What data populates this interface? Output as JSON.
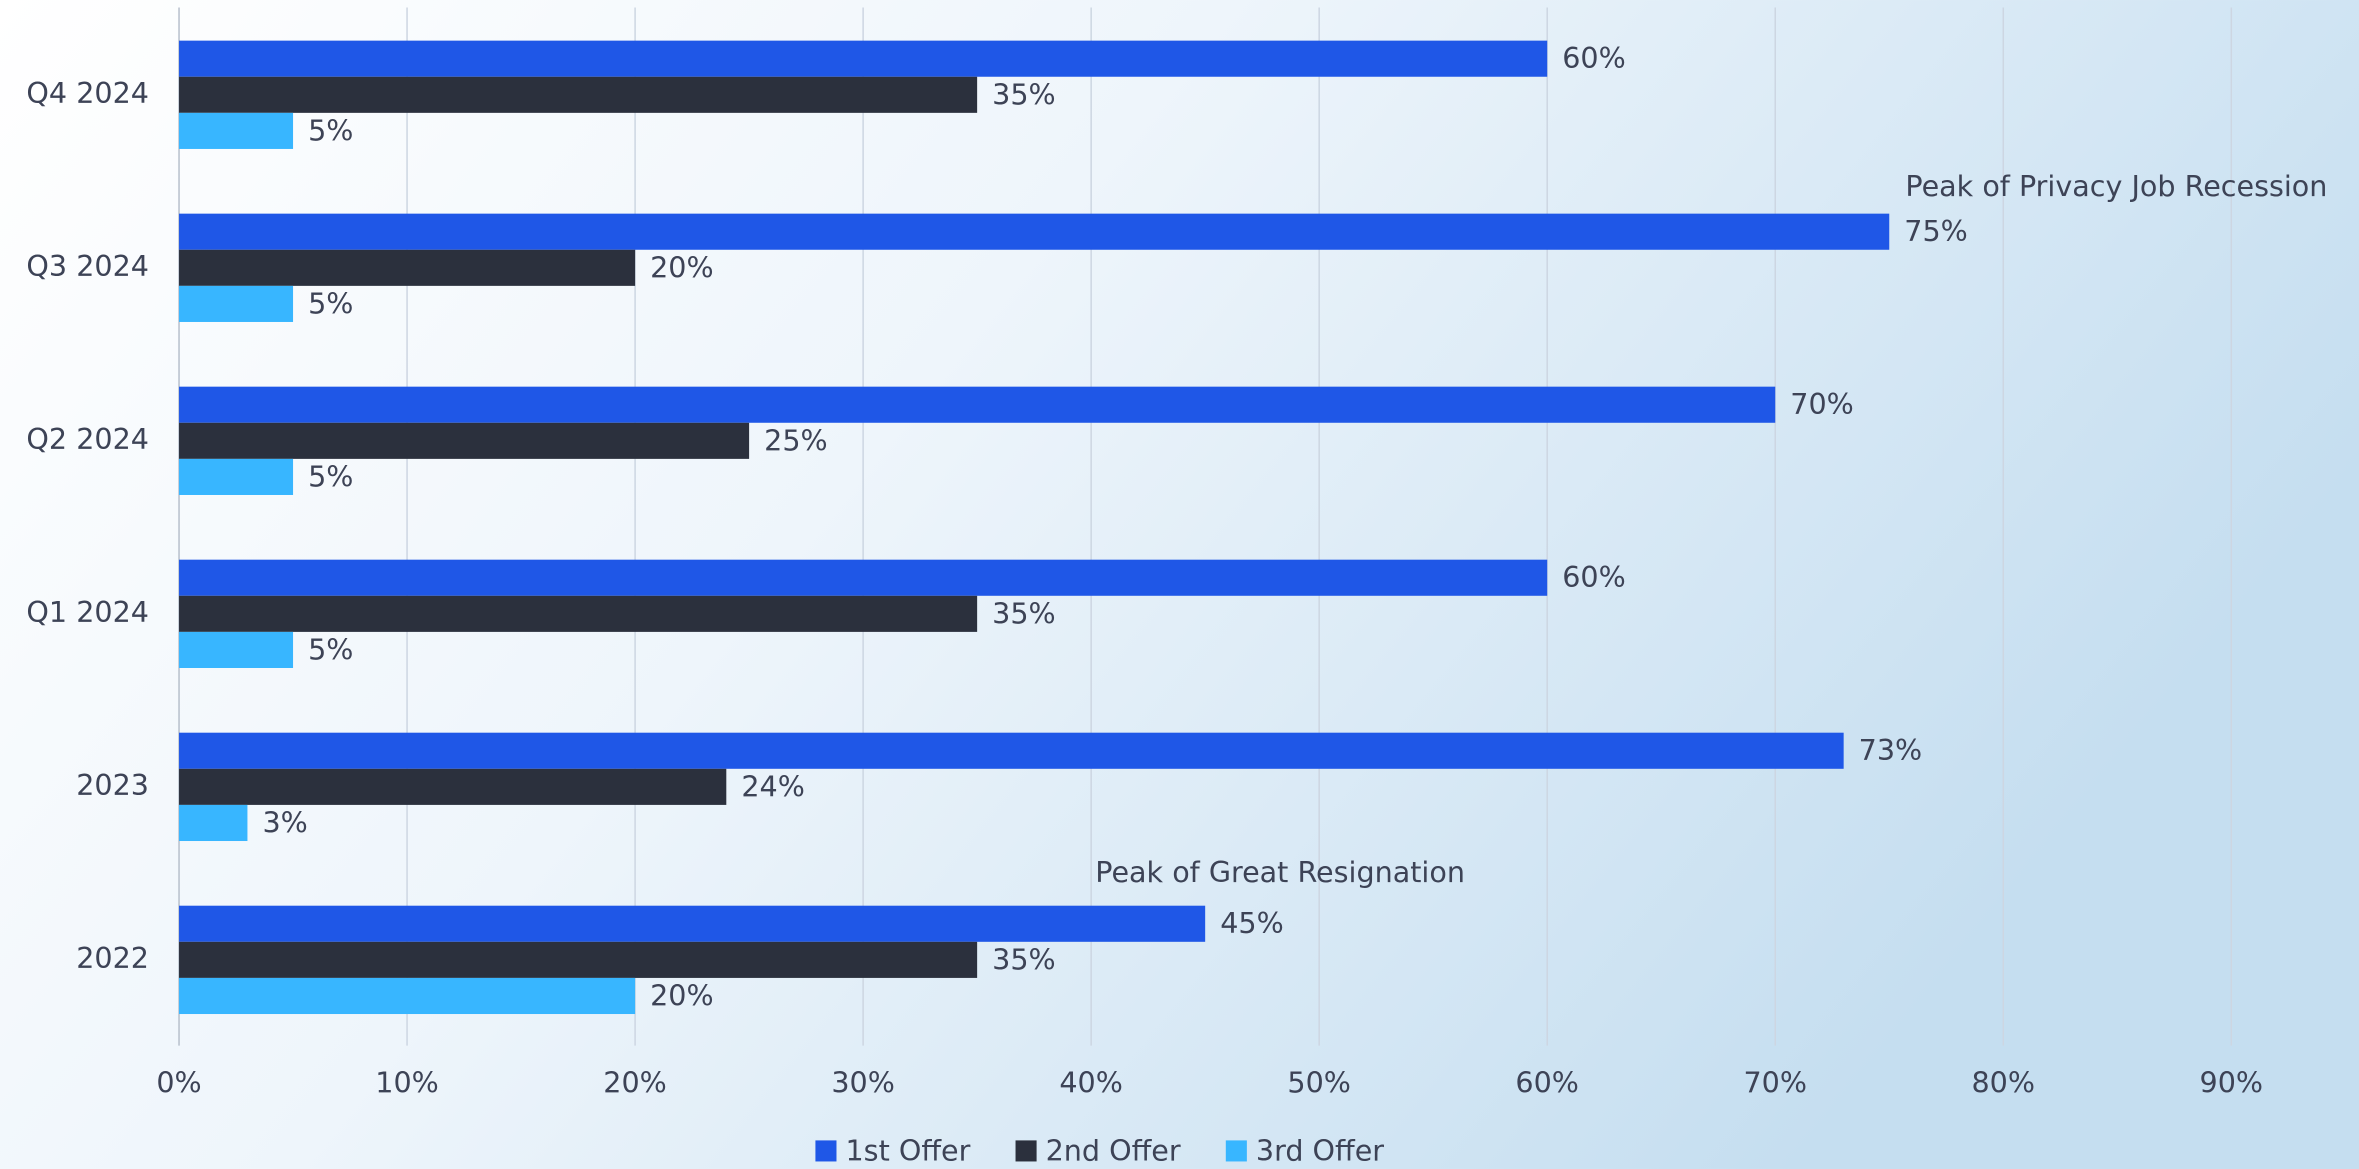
{
  "chart_data": {
    "type": "hbar",
    "categories": [
      "Q4 2024",
      "Q3 2024",
      "Q2 2024",
      "Q1 2024",
      "2023",
      "2022"
    ],
    "series": [
      {
        "name": "1st Offer",
        "color": "#1f57e7",
        "values": [
          60,
          75,
          70,
          60,
          73,
          45
        ],
        "value_labels": [
          "60%",
          "75%",
          "70%",
          "60%",
          "73%",
          "45%"
        ]
      },
      {
        "name": "2nd Offer",
        "color": "#2b303d",
        "values": [
          35,
          20,
          25,
          35,
          24,
          35
        ],
        "value_labels": [
          "35%",
          "20%",
          "25%",
          "35%",
          "24%",
          "35%"
        ]
      },
      {
        "name": "3rd Offer",
        "color": "#38b6ff",
        "values": [
          5,
          5,
          5,
          5,
          3,
          20
        ],
        "value_labels": [
          "5%",
          "5%",
          "5%",
          "5%",
          "3%",
          "20%"
        ]
      }
    ],
    "xlim": [
      0,
      95.6
    ],
    "xticks": [
      {
        "value": 0,
        "label": "0%"
      },
      {
        "value": 10,
        "label": "10%"
      },
      {
        "value": 20,
        "label": "20%"
      },
      {
        "value": 30,
        "label": "30%"
      },
      {
        "value": 40,
        "label": "40%"
      },
      {
        "value": 50,
        "label": "50%"
      },
      {
        "value": 60,
        "label": "60%"
      },
      {
        "value": 70,
        "label": "70%"
      },
      {
        "value": 80,
        "label": "80%"
      },
      {
        "value": 90,
        "label": "90%"
      }
    ],
    "grid": true,
    "legend": "bottom",
    "annotations": [
      "Peak of Privacy Job Recession",
      "Peak of Great Resignation"
    ]
  }
}
